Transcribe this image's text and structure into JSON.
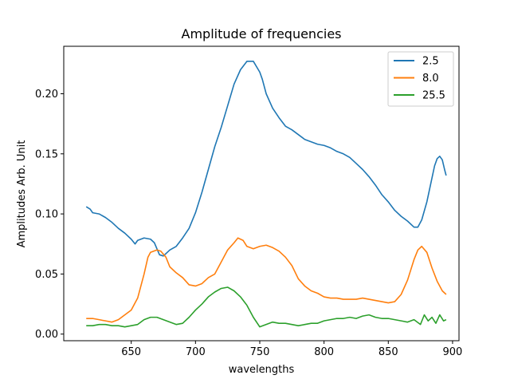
{
  "chart_data": {
    "type": "line",
    "title": "Amplitude of frequencies",
    "xlabel": "wavelengths",
    "ylabel": "Amplitudes Arb. Unit",
    "xlim": [
      597.5,
      905
    ],
    "ylim": [
      -0.0055,
      0.2395
    ],
    "xticks": [
      650,
      700,
      750,
      800,
      850,
      900
    ],
    "yticks": [
      0.0,
      0.05,
      0.1,
      0.15,
      0.2
    ],
    "ytick_labels": [
      "0.00",
      "0.05",
      "0.10",
      "0.15",
      "0.20"
    ],
    "grid": false,
    "legend_position": "top-right",
    "series": [
      {
        "name": "2.5",
        "color": "#1f77b4",
        "points": [
          [
            615,
            0.106
          ],
          [
            618,
            0.104
          ],
          [
            620,
            0.101
          ],
          [
            625,
            0.1
          ],
          [
            630,
            0.097
          ],
          [
            635,
            0.093
          ],
          [
            640,
            0.088
          ],
          [
            645,
            0.084
          ],
          [
            650,
            0.079
          ],
          [
            653,
            0.075
          ],
          [
            655,
            0.078
          ],
          [
            660,
            0.08
          ],
          [
            665,
            0.079
          ],
          [
            668,
            0.076
          ],
          [
            670,
            0.071
          ],
          [
            672,
            0.066
          ],
          [
            675,
            0.065
          ],
          [
            680,
            0.07
          ],
          [
            685,
            0.073
          ],
          [
            690,
            0.08
          ],
          [
            695,
            0.088
          ],
          [
            700,
            0.101
          ],
          [
            705,
            0.118
          ],
          [
            710,
            0.137
          ],
          [
            715,
            0.156
          ],
          [
            720,
            0.172
          ],
          [
            725,
            0.19
          ],
          [
            730,
            0.208
          ],
          [
            735,
            0.22
          ],
          [
            740,
            0.227
          ],
          [
            745,
            0.227
          ],
          [
            750,
            0.218
          ],
          [
            752,
            0.212
          ],
          [
            755,
            0.2
          ],
          [
            760,
            0.188
          ],
          [
            765,
            0.18
          ],
          [
            770,
            0.173
          ],
          [
            775,
            0.17
          ],
          [
            780,
            0.166
          ],
          [
            785,
            0.162
          ],
          [
            790,
            0.16
          ],
          [
            795,
            0.158
          ],
          [
            800,
            0.157
          ],
          [
            805,
            0.155
          ],
          [
            810,
            0.152
          ],
          [
            815,
            0.15
          ],
          [
            820,
            0.147
          ],
          [
            825,
            0.142
          ],
          [
            830,
            0.137
          ],
          [
            835,
            0.131
          ],
          [
            840,
            0.124
          ],
          [
            845,
            0.116
          ],
          [
            850,
            0.11
          ],
          [
            855,
            0.103
          ],
          [
            860,
            0.098
          ],
          [
            865,
            0.094
          ],
          [
            870,
            0.089
          ],
          [
            873,
            0.089
          ],
          [
            876,
            0.095
          ],
          [
            880,
            0.11
          ],
          [
            883,
            0.125
          ],
          [
            886,
            0.14
          ],
          [
            888,
            0.146
          ],
          [
            890,
            0.148
          ],
          [
            892,
            0.145
          ],
          [
            894,
            0.136
          ],
          [
            895,
            0.132
          ]
        ]
      },
      {
        "name": "8.0",
        "color": "#ff7f0e",
        "points": [
          [
            615,
            0.013
          ],
          [
            620,
            0.013
          ],
          [
            625,
            0.012
          ],
          [
            630,
            0.011
          ],
          [
            635,
            0.01
          ],
          [
            640,
            0.012
          ],
          [
            645,
            0.016
          ],
          [
            650,
            0.02
          ],
          [
            655,
            0.03
          ],
          [
            660,
            0.05
          ],
          [
            663,
            0.064
          ],
          [
            665,
            0.068
          ],
          [
            670,
            0.07
          ],
          [
            673,
            0.069
          ],
          [
            677,
            0.064
          ],
          [
            680,
            0.056
          ],
          [
            685,
            0.051
          ],
          [
            690,
            0.047
          ],
          [
            695,
            0.041
          ],
          [
            700,
            0.04
          ],
          [
            705,
            0.042
          ],
          [
            710,
            0.047
          ],
          [
            715,
            0.05
          ],
          [
            720,
            0.06
          ],
          [
            725,
            0.07
          ],
          [
            730,
            0.076
          ],
          [
            733,
            0.08
          ],
          [
            737,
            0.078
          ],
          [
            740,
            0.073
          ],
          [
            745,
            0.071
          ],
          [
            750,
            0.073
          ],
          [
            755,
            0.074
          ],
          [
            760,
            0.072
          ],
          [
            765,
            0.069
          ],
          [
            770,
            0.064
          ],
          [
            775,
            0.057
          ],
          [
            780,
            0.046
          ],
          [
            785,
            0.04
          ],
          [
            790,
            0.036
          ],
          [
            795,
            0.034
          ],
          [
            800,
            0.031
          ],
          [
            805,
            0.03
          ],
          [
            810,
            0.03
          ],
          [
            815,
            0.029
          ],
          [
            820,
            0.029
          ],
          [
            825,
            0.029
          ],
          [
            830,
            0.03
          ],
          [
            835,
            0.029
          ],
          [
            840,
            0.028
          ],
          [
            845,
            0.027
          ],
          [
            850,
            0.026
          ],
          [
            855,
            0.027
          ],
          [
            860,
            0.033
          ],
          [
            865,
            0.045
          ],
          [
            870,
            0.062
          ],
          [
            873,
            0.07
          ],
          [
            876,
            0.073
          ],
          [
            880,
            0.068
          ],
          [
            884,
            0.055
          ],
          [
            888,
            0.044
          ],
          [
            892,
            0.036
          ],
          [
            895,
            0.033
          ]
        ]
      },
      {
        "name": "25.5",
        "color": "#2ca02c",
        "points": [
          [
            615,
            0.007
          ],
          [
            620,
            0.007
          ],
          [
            625,
            0.008
          ],
          [
            630,
            0.008
          ],
          [
            635,
            0.007
          ],
          [
            640,
            0.007
          ],
          [
            645,
            0.006
          ],
          [
            650,
            0.007
          ],
          [
            655,
            0.008
          ],
          [
            660,
            0.012
          ],
          [
            665,
            0.014
          ],
          [
            670,
            0.014
          ],
          [
            675,
            0.012
          ],
          [
            680,
            0.01
          ],
          [
            685,
            0.008
          ],
          [
            690,
            0.009
          ],
          [
            695,
            0.014
          ],
          [
            700,
            0.02
          ],
          [
            705,
            0.025
          ],
          [
            710,
            0.031
          ],
          [
            715,
            0.035
          ],
          [
            720,
            0.038
          ],
          [
            725,
            0.039
          ],
          [
            730,
            0.036
          ],
          [
            735,
            0.031
          ],
          [
            740,
            0.024
          ],
          [
            745,
            0.014
          ],
          [
            750,
            0.006
          ],
          [
            755,
            0.008
          ],
          [
            760,
            0.01
          ],
          [
            765,
            0.009
          ],
          [
            770,
            0.009
          ],
          [
            775,
            0.008
          ],
          [
            780,
            0.007
          ],
          [
            785,
            0.008
          ],
          [
            790,
            0.009
          ],
          [
            795,
            0.009
          ],
          [
            800,
            0.011
          ],
          [
            805,
            0.012
          ],
          [
            810,
            0.013
          ],
          [
            815,
            0.013
          ],
          [
            820,
            0.014
          ],
          [
            825,
            0.013
          ],
          [
            830,
            0.015
          ],
          [
            835,
            0.016
          ],
          [
            840,
            0.014
          ],
          [
            845,
            0.013
          ],
          [
            850,
            0.013
          ],
          [
            855,
            0.012
          ],
          [
            860,
            0.011
          ],
          [
            865,
            0.01
          ],
          [
            870,
            0.012
          ],
          [
            875,
            0.008
          ],
          [
            878,
            0.016
          ],
          [
            881,
            0.011
          ],
          [
            884,
            0.014
          ],
          [
            887,
            0.009
          ],
          [
            890,
            0.016
          ],
          [
            893,
            0.011
          ],
          [
            895,
            0.012
          ]
        ]
      }
    ]
  }
}
